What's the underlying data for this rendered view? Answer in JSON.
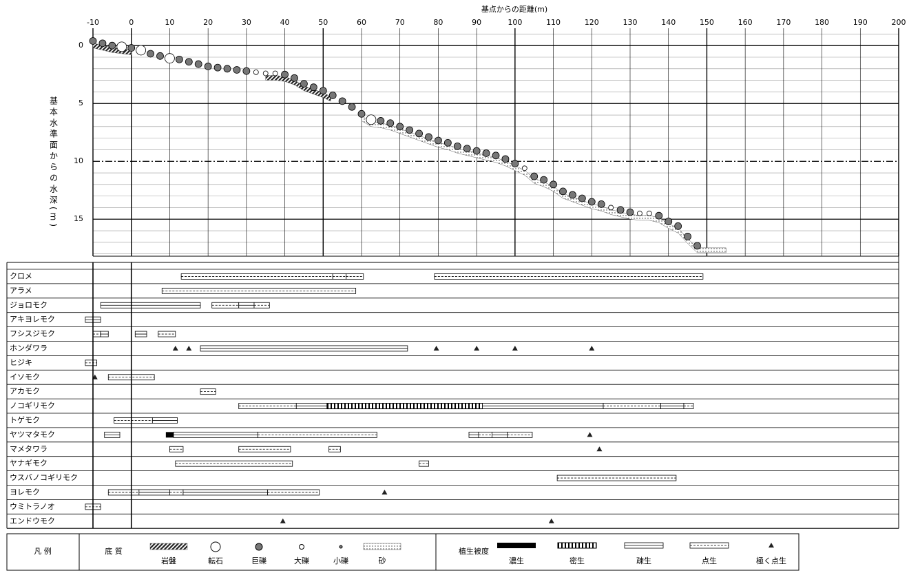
{
  "chart_data": {
    "type": "transect",
    "title": "基点からの距離(m)",
    "y_label": "基本水準面からの水深(m)",
    "xlim": [
      -10,
      200
    ],
    "xticks": [
      -10,
      0,
      10,
      20,
      30,
      40,
      50,
      60,
      70,
      80,
      90,
      100,
      110,
      120,
      130,
      140,
      150,
      160,
      170,
      180,
      190,
      200
    ],
    "ylim": [
      -1.5,
      18.2
    ],
    "yticks": [
      0,
      5,
      10,
      15
    ],
    "ytick_styles": [
      "solid",
      "solid",
      "dashdot",
      "solid"
    ],
    "minor_grid": true,
    "profile": {
      "x": [
        -10,
        -7.5,
        -5,
        -2.5,
        0,
        2.5,
        5,
        7.5,
        10,
        12.5,
        15,
        17.5,
        20,
        22.5,
        25,
        27.5,
        30,
        32.5,
        35,
        37.5,
        40,
        42.5,
        45,
        47.5,
        50,
        52.5,
        55,
        57.5,
        60,
        62.5,
        65,
        67.5,
        70,
        72.5,
        75,
        77.5,
        80,
        82.5,
        85,
        87.5,
        90,
        92.5,
        95,
        97.5,
        100,
        102.5,
        105,
        107.5,
        110,
        112.5,
        115,
        117.5,
        120,
        122.5,
        125,
        127.5,
        130,
        132.5,
        135,
        137.5,
        140,
        142.5,
        145,
        147.5
      ],
      "y": [
        -0.4,
        -0.2,
        0,
        0.1,
        0.2,
        0.4,
        0.7,
        0.9,
        1.1,
        1.2,
        1.4,
        1.6,
        1.8,
        1.9,
        2.0,
        2.1,
        2.2,
        2.3,
        2.4,
        2.4,
        2.5,
        2.8,
        3.3,
        3.6,
        3.9,
        4.3,
        4.8,
        5.3,
        5.9,
        6.4,
        6.5,
        6.7,
        7.0,
        7.3,
        7.6,
        7.9,
        8.2,
        8.4,
        8.7,
        8.9,
        9.1,
        9.3,
        9.5,
        9.8,
        10.2,
        10.6,
        11.3,
        11.6,
        12.0,
        12.6,
        12.9,
        13.2,
        13.5,
        13.7,
        14.0,
        14.2,
        14.4,
        14.5,
        14.5,
        14.7,
        15.2,
        15.6,
        16.5,
        17.3
      ],
      "substrate": [
        "巨礫",
        "巨礫",
        "巨礫",
        "転石",
        "巨礫",
        "転石",
        "巨礫",
        "巨礫",
        "転石",
        "巨礫",
        "巨礫",
        "巨礫",
        "巨礫",
        "巨礫",
        "巨礫",
        "巨礫",
        "巨礫",
        "大礫",
        "大礫",
        "大礫",
        "巨礫",
        "巨礫",
        "巨礫",
        "巨礫",
        "巨礫",
        "巨礫",
        "巨礫",
        "巨礫",
        "巨礫",
        "転石",
        "巨礫",
        "巨礫",
        "巨礫",
        "巨礫",
        "巨礫",
        "巨礫",
        "巨礫",
        "巨礫",
        "巨礫",
        "巨礫",
        "巨礫",
        "巨礫",
        "巨礫",
        "巨礫",
        "巨礫",
        "大礫",
        "巨礫",
        "巨礫",
        "巨礫",
        "巨礫",
        "巨礫",
        "巨礫",
        "巨礫",
        "巨礫",
        "大礫",
        "巨礫",
        "巨礫",
        "大礫",
        "大礫",
        "巨礫",
        "巨礫",
        "巨礫",
        "巨礫",
        "巨礫"
      ]
    },
    "bands": [
      {
        "substrate": "岩盤",
        "from": -10,
        "to": 0
      },
      {
        "substrate": "岩盤",
        "from": 35,
        "to": 52
      },
      {
        "substrate": "砂",
        "from": 60,
        "to": 155
      }
    ],
    "species": [
      {
        "name": "クロメ",
        "ranges": [
          {
            "from": 13,
            "to": 52.5,
            "cover": "点生"
          },
          {
            "from": 52.5,
            "to": 56,
            "cover": "点生"
          },
          {
            "from": 56,
            "to": 60.5,
            "cover": "点生"
          },
          {
            "from": 79,
            "to": 149,
            "cover": "点生"
          }
        ],
        "spots": []
      },
      {
        "name": "アラメ",
        "ranges": [
          {
            "from": 8,
            "to": 58.5,
            "cover": "点生"
          }
        ],
        "spots": []
      },
      {
        "name": "ジョロモク",
        "ranges": [
          {
            "from": -8,
            "to": 18,
            "cover": "疎生"
          },
          {
            "from": 21,
            "to": 28,
            "cover": "点生"
          },
          {
            "from": 28,
            "to": 32,
            "cover": "疎生"
          },
          {
            "from": 32,
            "to": 36,
            "cover": "点生"
          }
        ],
        "spots": []
      },
      {
        "name": "アキヨレモク",
        "ranges": [
          {
            "from": -12,
            "to": -8,
            "cover": "疎生"
          }
        ],
        "spots": []
      },
      {
        "name": "フシスジモク",
        "ranges": [
          {
            "from": -10,
            "to": -8,
            "cover": "点生"
          },
          {
            "from": -8,
            "to": -6,
            "cover": "疎生"
          },
          {
            "from": 1,
            "to": 4,
            "cover": "疎生"
          },
          {
            "from": 7,
            "to": 11.5,
            "cover": "点生"
          }
        ],
        "spots": []
      },
      {
        "name": "ホンダワラ",
        "ranges": [
          {
            "from": 18,
            "to": 72,
            "cover": "疎生"
          }
        ],
        "spots": [
          11.5,
          15,
          79.5,
          90,
          100,
          120
        ]
      },
      {
        "name": "ヒジキ",
        "ranges": [
          {
            "from": -12,
            "to": -9,
            "cover": "点生"
          }
        ],
        "spots": []
      },
      {
        "name": "イソモク",
        "ranges": [
          {
            "from": -6,
            "to": 6,
            "cover": "点生"
          }
        ],
        "spots": [
          -9.5
        ]
      },
      {
        "name": "アカモク",
        "ranges": [
          {
            "from": 18,
            "to": 22,
            "cover": "点生"
          }
        ],
        "spots": []
      },
      {
        "name": "ノコギリモク",
        "ranges": [
          {
            "from": 28,
            "to": 43,
            "cover": "点生"
          },
          {
            "from": 43,
            "to": 51,
            "cover": "疎生"
          },
          {
            "from": 51,
            "to": 91.5,
            "cover": "密生"
          },
          {
            "from": 91.5,
            "to": 123,
            "cover": "疎生"
          },
          {
            "from": 123,
            "to": 138,
            "cover": "点生"
          },
          {
            "from": 138,
            "to": 144,
            "cover": "疎生"
          },
          {
            "from": 144,
            "to": 146.5,
            "cover": "点生"
          }
        ],
        "spots": []
      },
      {
        "name": "トゲモク",
        "ranges": [
          {
            "from": -4.5,
            "to": 5.5,
            "cover": "点生"
          },
          {
            "from": 5.5,
            "to": 12,
            "cover": "疎生"
          }
        ],
        "spots": []
      },
      {
        "name": "ヤツマタモク",
        "ranges": [
          {
            "from": -7,
            "to": -3,
            "cover": "疎生"
          },
          {
            "from": 9,
            "to": 11,
            "cover": "濃生"
          },
          {
            "from": 11,
            "to": 33,
            "cover": "疎生"
          },
          {
            "from": 33,
            "to": 64,
            "cover": "点生"
          },
          {
            "from": 88,
            "to": 90.5,
            "cover": "疎生"
          },
          {
            "from": 90.5,
            "to": 94,
            "cover": "点生"
          },
          {
            "from": 94,
            "to": 98,
            "cover": "疎生"
          },
          {
            "from": 98,
            "to": 104.5,
            "cover": "点生"
          }
        ],
        "spots": [
          119.5
        ]
      },
      {
        "name": "マメタワラ",
        "ranges": [
          {
            "from": 10,
            "to": 13.5,
            "cover": "点生"
          },
          {
            "from": 28,
            "to": 41.5,
            "cover": "点生"
          },
          {
            "from": 51.5,
            "to": 54.5,
            "cover": "点生"
          }
        ],
        "spots": [
          122
        ]
      },
      {
        "name": "ヤナギモク",
        "ranges": [
          {
            "from": 11.5,
            "to": 42,
            "cover": "点生"
          },
          {
            "from": 75,
            "to": 77.5,
            "cover": "点生"
          }
        ],
        "spots": []
      },
      {
        "name": "ウスバノコギリモク",
        "ranges": [
          {
            "from": 111,
            "to": 142,
            "cover": "点生"
          }
        ],
        "spots": []
      },
      {
        "name": "ヨレモク",
        "ranges": [
          {
            "from": -6,
            "to": 2,
            "cover": "点生"
          },
          {
            "from": 2,
            "to": 10,
            "cover": "疎生"
          },
          {
            "from": 10,
            "to": 13.5,
            "cover": "点生"
          },
          {
            "from": 13.5,
            "to": 35.5,
            "cover": "疎生"
          },
          {
            "from": 35.5,
            "to": 49,
            "cover": "点生"
          }
        ],
        "spots": [
          66
        ]
      },
      {
        "name": "ウミトラノオ",
        "ranges": [
          {
            "from": -12,
            "to": -8,
            "cover": "点生"
          }
        ],
        "spots": []
      },
      {
        "name": "エンドウモク",
        "ranges": [],
        "spots": [
          39.5,
          109.5
        ]
      }
    ],
    "legend": {
      "title": "凡 例",
      "substrate_title": "底 質",
      "substrate": [
        "岩盤",
        "転石",
        "巨礫",
        "大礫",
        "小礫",
        "砂"
      ],
      "cover_title": "植生被度",
      "cover": [
        "濃生",
        "密生",
        "疎生",
        "点生",
        "極く点生"
      ]
    }
  }
}
